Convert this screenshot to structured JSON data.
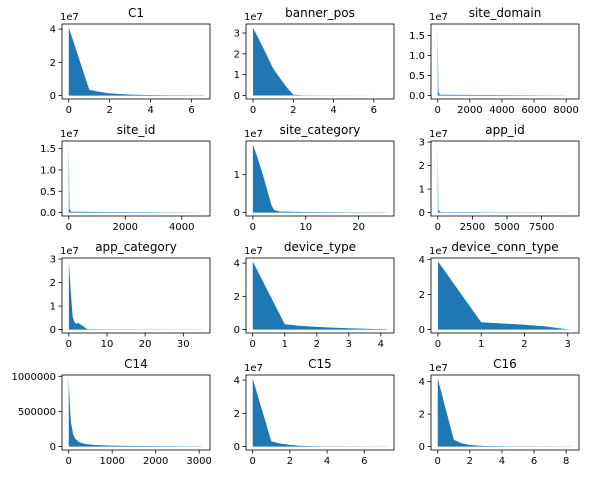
{
  "figure": {
    "background": "#ffffff",
    "fill_color": "#1f77b4",
    "spine_color": "#000000",
    "grid": "off",
    "legend": "none"
  },
  "chart_data": [
    {
      "type": "area",
      "title": "C1",
      "offset_text": "1e7",
      "xlim": [
        -0.33,
        6.9
      ],
      "ylim": [
        -2050000,
        43050000
      ],
      "xticks": [
        {
          "v": 0,
          "label": "0"
        },
        {
          "v": 2,
          "label": "2"
        },
        {
          "v": 4,
          "label": "4"
        },
        {
          "v": 6,
          "label": "6"
        }
      ],
      "yticks": [
        {
          "v": 0,
          "label": "0"
        },
        {
          "v": 20000000,
          "label": "2"
        },
        {
          "v": 40000000,
          "label": "4"
        }
      ],
      "points": [
        [
          0,
          41000000
        ],
        [
          1,
          3500000
        ],
        [
          1.5,
          2200000
        ],
        [
          2,
          1300000
        ],
        [
          3,
          600000
        ],
        [
          4,
          350000
        ],
        [
          5,
          200000
        ],
        [
          6.6,
          100000
        ]
      ]
    },
    {
      "type": "area",
      "title": "banner_pos",
      "offset_text": "1e7",
      "xlim": [
        -0.35,
        7.0
      ],
      "ylim": [
        -1650000,
        34300000
      ],
      "xticks": [
        {
          "v": 0,
          "label": "0"
        },
        {
          "v": 2,
          "label": "2"
        },
        {
          "v": 4,
          "label": "4"
        },
        {
          "v": 6,
          "label": "6"
        }
      ],
      "yticks": [
        {
          "v": 0,
          "label": "0"
        },
        {
          "v": 10000000,
          "label": "1"
        },
        {
          "v": 20000000,
          "label": "2"
        },
        {
          "v": 30000000,
          "label": "3"
        }
      ],
      "points": [
        [
          0,
          32500000
        ],
        [
          0.5,
          23000000
        ],
        [
          1,
          13000000
        ],
        [
          1.25,
          9500000
        ],
        [
          1.5,
          6200000
        ],
        [
          1.75,
          3000000
        ],
        [
          2,
          400000
        ],
        [
          2.5,
          150000
        ],
        [
          4,
          80000
        ],
        [
          6.8,
          40000
        ]
      ]
    },
    {
      "type": "area",
      "title": "site_domain",
      "offset_text": "1e7",
      "xlim": [
        -420,
        8800
      ],
      "ylim": [
        -850000,
        17850000
      ],
      "xticks": [
        {
          "v": 0,
          "label": "0"
        },
        {
          "v": 2000,
          "label": "2000"
        },
        {
          "v": 4000,
          "label": "4000"
        },
        {
          "v": 6000,
          "label": "6000"
        },
        {
          "v": 8000,
          "label": "8000"
        }
      ],
      "yticks": [
        {
          "v": 0,
          "label": "0.0"
        },
        {
          "v": 5000000,
          "label": "0.5"
        },
        {
          "v": 10000000,
          "label": "1.0"
        },
        {
          "v": 15000000,
          "label": "1.5"
        }
      ],
      "points": [
        [
          0,
          17000000
        ],
        [
          40,
          1000000
        ],
        [
          120,
          200000
        ],
        [
          8000,
          20000
        ]
      ]
    },
    {
      "type": "area",
      "title": "site_id",
      "offset_text": "1e7",
      "xlim": [
        -240,
        5000
      ],
      "ylim": [
        -800000,
        16800000
      ],
      "xticks": [
        {
          "v": 0,
          "label": "0"
        },
        {
          "v": 2000,
          "label": "2000"
        },
        {
          "v": 4000,
          "label": "4000"
        }
      ],
      "yticks": [
        {
          "v": 0,
          "label": "0.0"
        },
        {
          "v": 5000000,
          "label": "0.5"
        },
        {
          "v": 10000000,
          "label": "1.0"
        },
        {
          "v": 15000000,
          "label": "1.5"
        }
      ],
      "points": [
        [
          0,
          16000000
        ],
        [
          25,
          1000000
        ],
        [
          80,
          200000
        ],
        [
          4600,
          20000
        ]
      ]
    },
    {
      "type": "area",
      "title": "site_category",
      "offset_text": "1e7",
      "xlim": [
        -1.3,
        26.7
      ],
      "ylim": [
        -900000,
        18900000
      ],
      "xticks": [
        {
          "v": 0,
          "label": "0"
        },
        {
          "v": 10,
          "label": "10"
        },
        {
          "v": 20,
          "label": "20"
        }
      ],
      "yticks": [
        {
          "v": 0,
          "label": "0"
        },
        {
          "v": 10000000,
          "label": "1"
        }
      ],
      "points": [
        [
          0,
          18000000
        ],
        [
          1,
          14000000
        ],
        [
          2,
          9500000
        ],
        [
          3,
          4500000
        ],
        [
          3.5,
          2000000
        ],
        [
          4,
          700000
        ],
        [
          5,
          300000
        ],
        [
          10,
          150000
        ],
        [
          15,
          80000
        ],
        [
          25.5,
          40000
        ]
      ]
    },
    {
      "type": "area",
      "title": "app_id",
      "offset_text": "1e7",
      "xlim": [
        -490,
        10200
      ],
      "ylim": [
        -1450000,
        30450000
      ],
      "xticks": [
        {
          "v": 0,
          "label": "0"
        },
        {
          "v": 2500,
          "label": "2500"
        },
        {
          "v": 5000,
          "label": "5000"
        },
        {
          "v": 7500,
          "label": "7500"
        }
      ],
      "yticks": [
        {
          "v": 0,
          "label": "0"
        },
        {
          "v": 10000000,
          "label": "1"
        },
        {
          "v": 20000000,
          "label": "2"
        },
        {
          "v": 30000000,
          "label": "3"
        }
      ],
      "points": [
        [
          0,
          29000000
        ],
        [
          40,
          1000000
        ],
        [
          200,
          200000
        ],
        [
          9300,
          20000
        ]
      ]
    },
    {
      "type": "area",
      "title": "app_category",
      "offset_text": "1e7",
      "xlim": [
        -1.8,
        37
      ],
      "ylim": [
        -1450000,
        30450000
      ],
      "xticks": [
        {
          "v": 0,
          "label": "0"
        },
        {
          "v": 10,
          "label": "10"
        },
        {
          "v": 20,
          "label": "20"
        },
        {
          "v": 30,
          "label": "30"
        }
      ],
      "yticks": [
        {
          "v": 0,
          "label": "0"
        },
        {
          "v": 10000000,
          "label": "1"
        },
        {
          "v": 20000000,
          "label": "2"
        },
        {
          "v": 30000000,
          "label": "3"
        }
      ],
      "points": [
        [
          0,
          29000000
        ],
        [
          0.5,
          16000000
        ],
        [
          1,
          5500000
        ],
        [
          1.5,
          3000000
        ],
        [
          2,
          2500000
        ],
        [
          2.5,
          2800000
        ],
        [
          3,
          2200000
        ],
        [
          4,
          1200000
        ],
        [
          4.5,
          500000
        ],
        [
          5,
          200000
        ],
        [
          10,
          100000
        ],
        [
          35,
          40000
        ]
      ]
    },
    {
      "type": "area",
      "title": "device_type",
      "offset_text": "1e7",
      "xlim": [
        -0.21,
        4.41
      ],
      "ylim": [
        -2050000,
        43050000
      ],
      "xticks": [
        {
          "v": 0,
          "label": "0"
        },
        {
          "v": 1,
          "label": "1"
        },
        {
          "v": 2,
          "label": "2"
        },
        {
          "v": 3,
          "label": "3"
        },
        {
          "v": 4,
          "label": "4"
        }
      ],
      "yticks": [
        {
          "v": 0,
          "label": "0"
        },
        {
          "v": 20000000,
          "label": "2"
        },
        {
          "v": 40000000,
          "label": "4"
        }
      ],
      "points": [
        [
          0,
          41000000
        ],
        [
          1,
          3200000
        ],
        [
          1.5,
          2200000
        ],
        [
          2,
          1600000
        ],
        [
          2.5,
          1200000
        ],
        [
          3,
          800000
        ],
        [
          3.5,
          500000
        ],
        [
          4.2,
          200000
        ]
      ]
    },
    {
      "type": "area",
      "title": "device_conn_type",
      "offset_text": "1e7",
      "xlim": [
        -0.16,
        3.26
      ],
      "ylim": [
        -1950000,
        40950000
      ],
      "xticks": [
        {
          "v": 0,
          "label": "0"
        },
        {
          "v": 1,
          "label": "1"
        },
        {
          "v": 2,
          "label": "2"
        },
        {
          "v": 3,
          "label": "3"
        }
      ],
      "yticks": [
        {
          "v": 0,
          "label": "0"
        },
        {
          "v": 20000000,
          "label": "2"
        },
        {
          "v": 40000000,
          "label": "4"
        }
      ],
      "points": [
        [
          0,
          39000000
        ],
        [
          1,
          4200000
        ],
        [
          1.5,
          3500000
        ],
        [
          2,
          2800000
        ],
        [
          2.5,
          1800000
        ],
        [
          3,
          100000
        ],
        [
          3.1,
          50000
        ]
      ]
    },
    {
      "type": "area",
      "title": "C14",
      "offset_text": "",
      "xlim": [
        -155,
        3250
      ],
      "ylim": [
        -48500,
        1018500
      ],
      "xticks": [
        {
          "v": 0,
          "label": "0"
        },
        {
          "v": 1000,
          "label": "1000"
        },
        {
          "v": 2000,
          "label": "2000"
        },
        {
          "v": 3000,
          "label": "3000"
        }
      ],
      "yticks": [
        {
          "v": 0,
          "label": "0"
        },
        {
          "v": 500000,
          "label": "500000"
        },
        {
          "v": 1000000,
          "label": "1000000"
        }
      ],
      "points": [
        [
          0,
          970000
        ],
        [
          25,
          600000
        ],
        [
          50,
          350000
        ],
        [
          100,
          180000
        ],
        [
          150,
          110000
        ],
        [
          250,
          60000
        ],
        [
          400,
          35000
        ],
        [
          600,
          22000
        ],
        [
          1000,
          14000
        ],
        [
          1500,
          9000
        ],
        [
          2000,
          6000
        ],
        [
          3050,
          3000
        ]
      ]
    },
    {
      "type": "area",
      "title": "C15",
      "offset_text": "1e7",
      "xlim": [
        -0.36,
        7.6
      ],
      "ylim": [
        -2050000,
        43050000
      ],
      "xticks": [
        {
          "v": 0,
          "label": "0"
        },
        {
          "v": 2,
          "label": "2"
        },
        {
          "v": 4,
          "label": "4"
        },
        {
          "v": 6,
          "label": "6"
        }
      ],
      "yticks": [
        {
          "v": 0,
          "label": "0"
        },
        {
          "v": 20000000,
          "label": "2"
        },
        {
          "v": 40000000,
          "label": "4"
        }
      ],
      "points": [
        [
          0,
          41000000
        ],
        [
          1,
          3200000
        ],
        [
          1.5,
          1800000
        ],
        [
          2,
          1000000
        ],
        [
          2.5,
          500000
        ],
        [
          3,
          300000
        ],
        [
          4,
          150000
        ],
        [
          7.3,
          50000
        ]
      ]
    },
    {
      "type": "area",
      "title": "C16",
      "offset_text": "1e7",
      "xlim": [
        -0.42,
        8.8
      ],
      "ylim": [
        -2100000,
        44100000
      ],
      "xticks": [
        {
          "v": 0,
          "label": "0"
        },
        {
          "v": 2,
          "label": "2"
        },
        {
          "v": 4,
          "label": "4"
        },
        {
          "v": 6,
          "label": "6"
        },
        {
          "v": 8,
          "label": "8"
        }
      ],
      "yticks": [
        {
          "v": 0,
          "label": "0"
        },
        {
          "v": 20000000,
          "label": "2"
        },
        {
          "v": 40000000,
          "label": "4"
        }
      ],
      "points": [
        [
          0,
          42000000
        ],
        [
          1,
          4200000
        ],
        [
          1.5,
          2000000
        ],
        [
          2,
          1000000
        ],
        [
          2.5,
          600000
        ],
        [
          3,
          400000
        ],
        [
          4,
          200000
        ],
        [
          5,
          100000
        ],
        [
          8.4,
          40000
        ]
      ]
    }
  ]
}
